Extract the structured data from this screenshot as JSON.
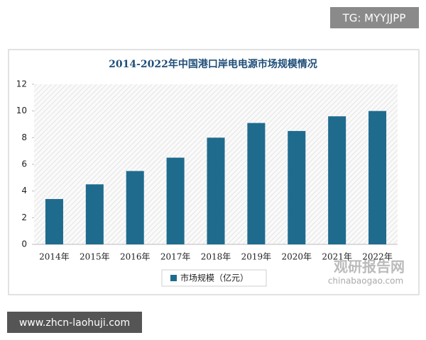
{
  "chart_data": {
    "type": "bar",
    "title": "2014-2022年中国港口岸电电源市场规模情况",
    "categories": [
      "2014年",
      "2015年",
      "2016年",
      "2017年",
      "2018年",
      "2019年",
      "2020年",
      "2021年",
      "2022年"
    ],
    "series": [
      {
        "name": "市场规模（亿元）",
        "color": "#1f6b8e",
        "values": [
          3.4,
          4.5,
          5.5,
          6.5,
          8.0,
          9.1,
          8.5,
          9.6,
          10.0
        ]
      }
    ],
    "ylim": [
      0,
      12
    ],
    "yticks": [
      0,
      2,
      4,
      6,
      8,
      10,
      12
    ],
    "grid": false,
    "legend": "bottom"
  },
  "overlay": {
    "top_badge": "TG: MYYJJPP",
    "bottom_badge": "www.zhcn-laohuji.com",
    "watermark_cn": "观研报告网",
    "watermark_en": "chinabaogao.com"
  }
}
